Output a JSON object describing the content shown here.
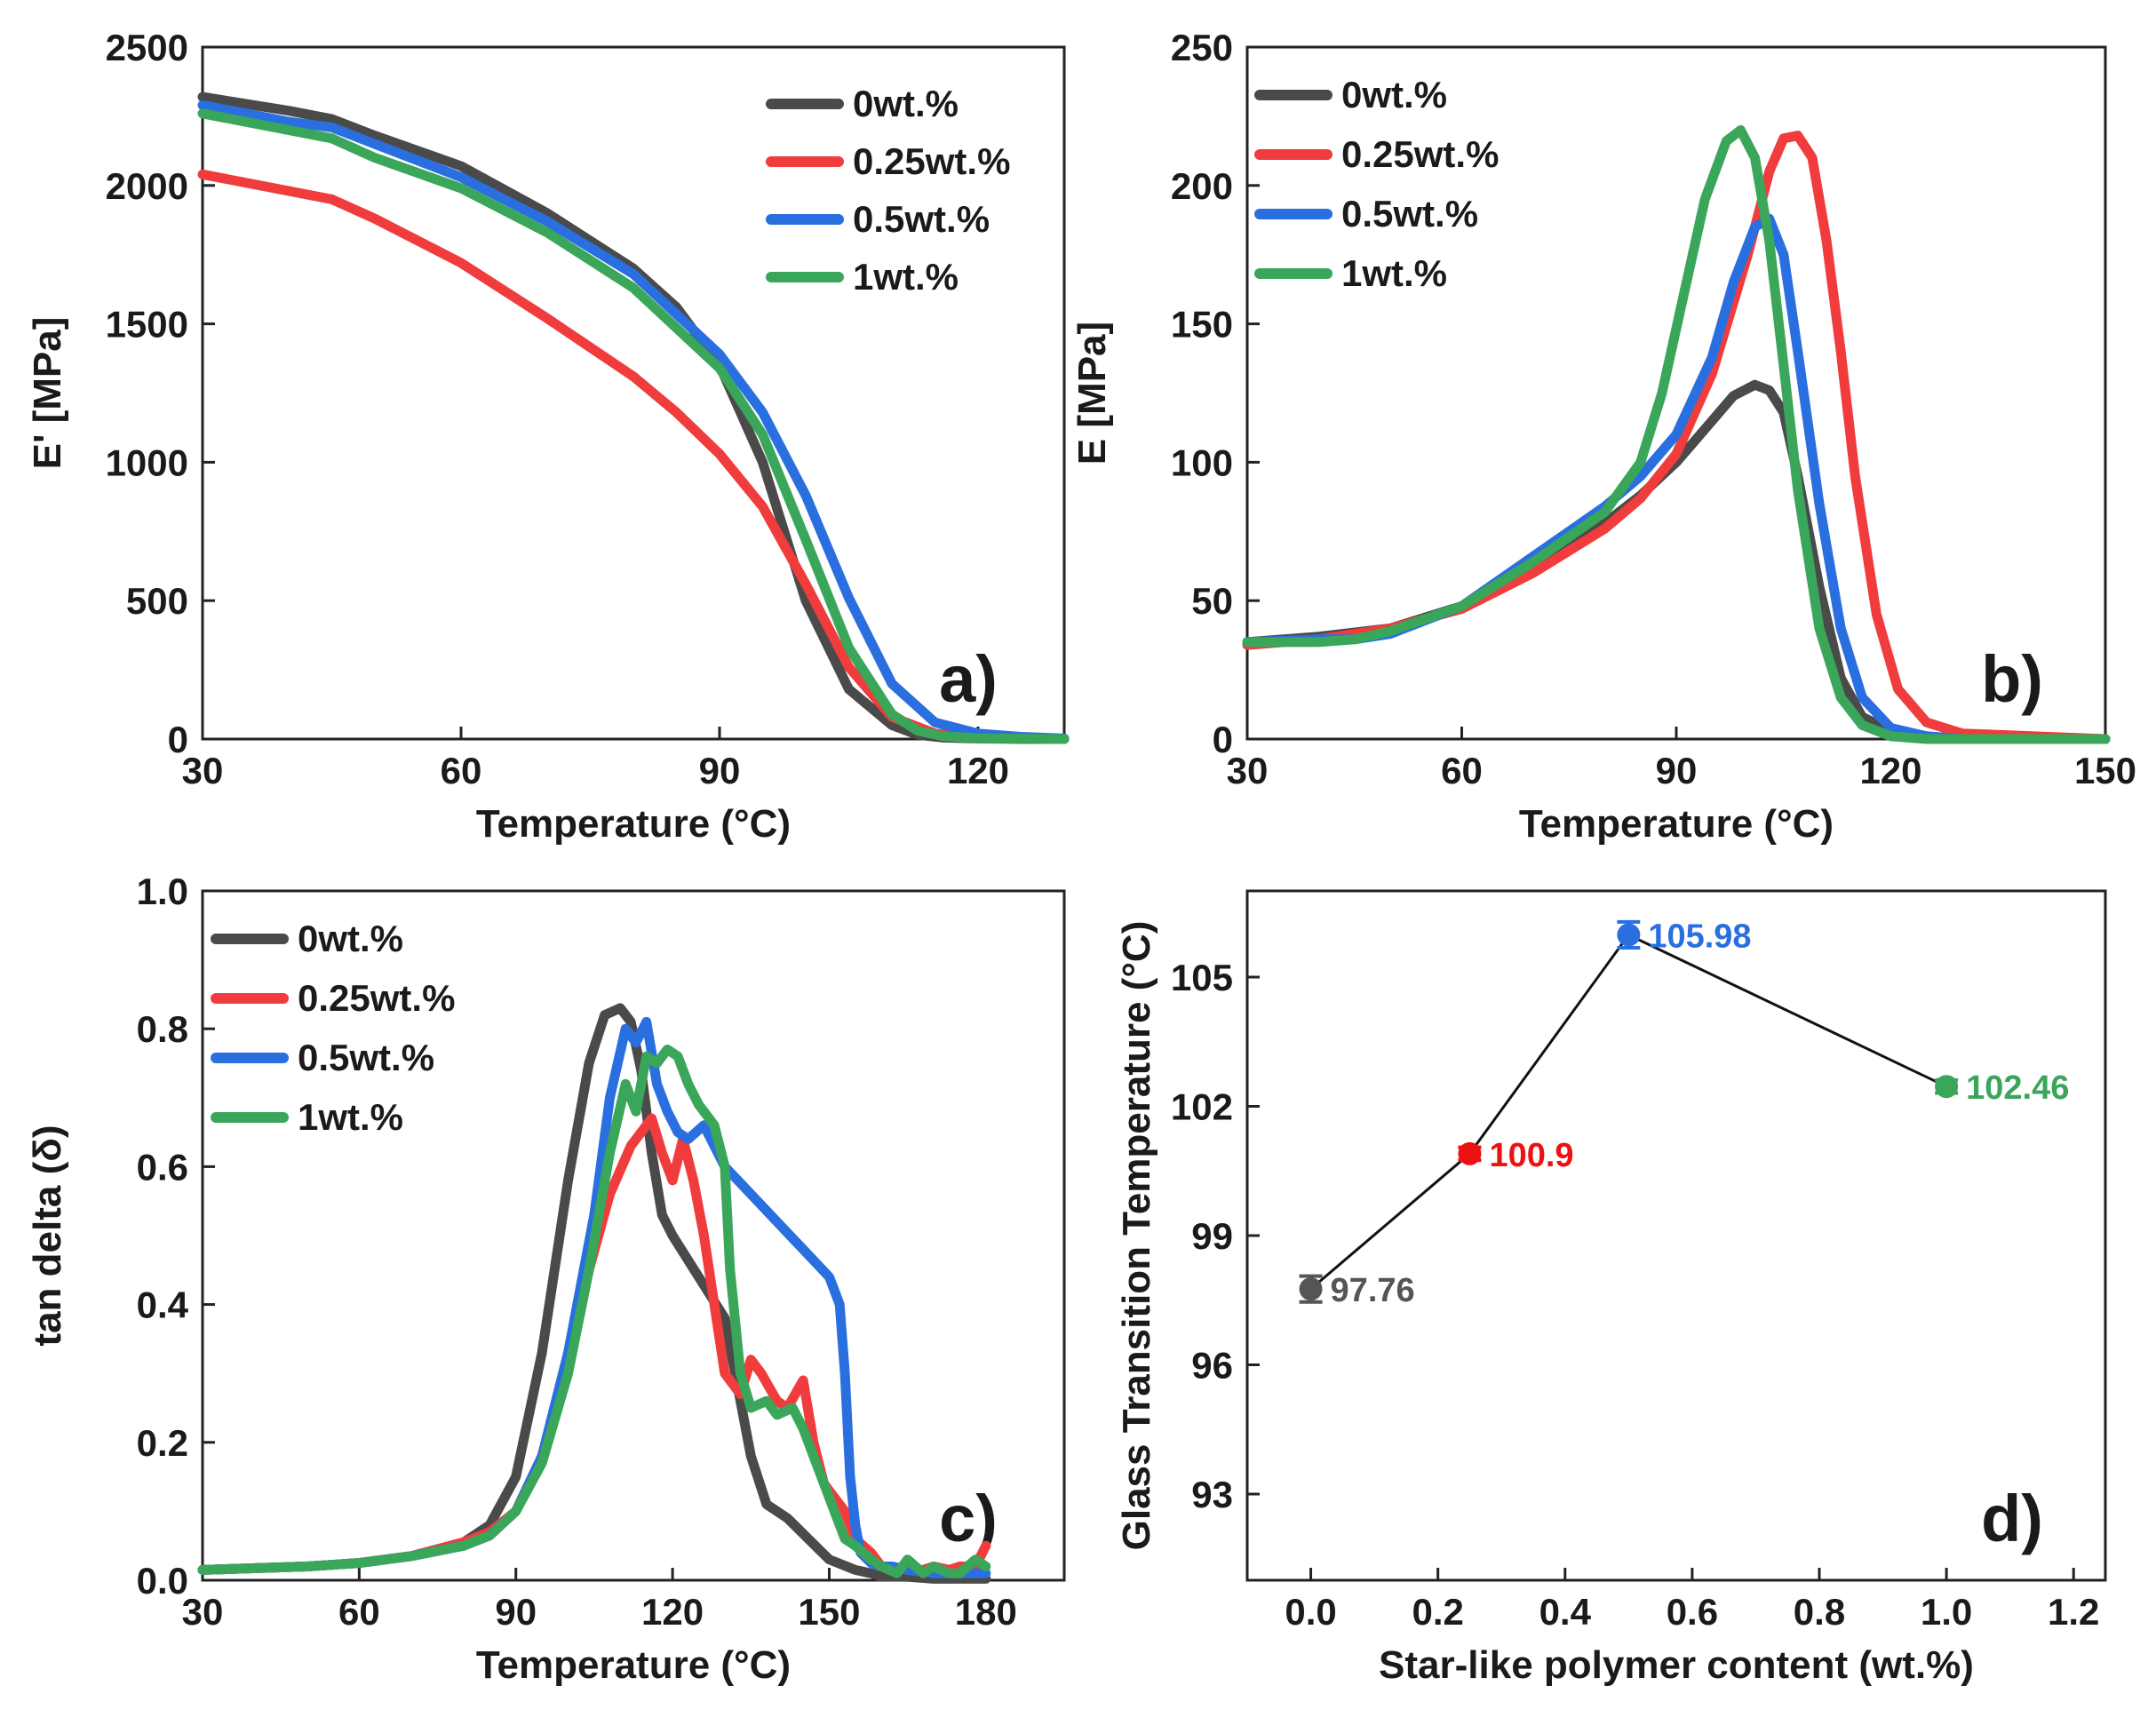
{
  "chart_data": [
    {
      "panel": "a)",
      "type": "line",
      "xlabel": "Temperature (°C)",
      "ylabel": "E' [MPa]",
      "xlim": [
        30,
        130
      ],
      "ylim": [
        0,
        2500
      ],
      "xticks": [
        30,
        60,
        90,
        120
      ],
      "yticks": [
        0,
        500,
        1000,
        1500,
        2000,
        2500
      ],
      "legend_position": "top-right",
      "series": [
        {
          "name": "0wt.%",
          "color": "#4a4a4a",
          "x": [
            30,
            40,
            45,
            50,
            60,
            70,
            80,
            85,
            90,
            95,
            100,
            105,
            110,
            113,
            116,
            120,
            125,
            130
          ],
          "y": [
            2320,
            2270,
            2240,
            2180,
            2070,
            1900,
            1700,
            1560,
            1350,
            1000,
            500,
            180,
            50,
            15,
            5,
            2,
            0,
            0
          ]
        },
        {
          "name": "0.25wt.%",
          "color": "#f03c3c",
          "x": [
            30,
            40,
            45,
            50,
            60,
            70,
            80,
            85,
            90,
            95,
            100,
            105,
            110,
            115,
            120,
            125,
            130
          ],
          "y": [
            2040,
            1980,
            1950,
            1880,
            1720,
            1520,
            1310,
            1180,
            1030,
            840,
            560,
            260,
            80,
            20,
            5,
            2,
            0
          ]
        },
        {
          "name": "0.5wt.%",
          "color": "#2a6fe0",
          "x": [
            30,
            40,
            45,
            50,
            60,
            70,
            80,
            90,
            95,
            100,
            105,
            110,
            115,
            120,
            125,
            130
          ],
          "y": [
            2290,
            2230,
            2210,
            2150,
            2030,
            1870,
            1680,
            1390,
            1180,
            880,
            510,
            200,
            60,
            20,
            8,
            2
          ]
        },
        {
          "name": "1wt.%",
          "color": "#3aa65a",
          "x": [
            30,
            40,
            45,
            50,
            60,
            70,
            80,
            90,
            95,
            100,
            105,
            110,
            113,
            116,
            120,
            125,
            130
          ],
          "y": [
            2260,
            2200,
            2170,
            2100,
            1990,
            1830,
            1630,
            1340,
            1100,
            720,
            330,
            90,
            30,
            10,
            3,
            1,
            0
          ]
        }
      ]
    },
    {
      "panel": "b)",
      "type": "line",
      "xlabel": "Temperature (°C)",
      "ylabel": "E [MPa]",
      "xlim": [
        30,
        150
      ],
      "ylim": [
        0,
        250
      ],
      "xticks": [
        30,
        60,
        90,
        120,
        150
      ],
      "yticks": [
        0,
        50,
        100,
        150,
        200,
        250
      ],
      "legend_position": "top-left",
      "series": [
        {
          "name": "0wt.%",
          "color": "#4a4a4a",
          "x": [
            30,
            40,
            50,
            60,
            70,
            80,
            85,
            90,
            95,
            98,
            101,
            103,
            105,
            107,
            110,
            113,
            116,
            120,
            125,
            130,
            150
          ],
          "y": [
            35,
            37,
            40,
            48,
            62,
            78,
            88,
            100,
            115,
            124,
            128,
            126,
            118,
            95,
            55,
            22,
            8,
            3,
            1,
            0,
            0
          ]
        },
        {
          "name": "0.25wt.%",
          "color": "#f03c3c",
          "x": [
            30,
            40,
            50,
            60,
            70,
            80,
            85,
            90,
            95,
            100,
            103,
            105,
            107,
            109,
            111,
            113,
            115,
            118,
            121,
            125,
            130,
            140,
            150
          ],
          "y": [
            34,
            36,
            40,
            47,
            60,
            76,
            87,
            103,
            132,
            175,
            205,
            217,
            218,
            210,
            180,
            140,
            95,
            45,
            18,
            6,
            2,
            1,
            0
          ]
        },
        {
          "name": "0.5wt.%",
          "color": "#2a6fe0",
          "x": [
            30,
            40,
            45,
            50,
            60,
            70,
            80,
            85,
            90,
            95,
            98,
            101,
            103,
            105,
            107,
            110,
            113,
            116,
            120,
            125,
            130,
            150
          ],
          "y": [
            35,
            36,
            36,
            38,
            48,
            66,
            84,
            95,
            110,
            138,
            165,
            185,
            188,
            175,
            140,
            85,
            40,
            15,
            4,
            1,
            0,
            0
          ]
        },
        {
          "name": "1wt.%",
          "color": "#3aa65a",
          "x": [
            30,
            40,
            45,
            50,
            60,
            70,
            80,
            85,
            88,
            91,
            94,
            97,
            99,
            101,
            103,
            105,
            107,
            110,
            113,
            116,
            120,
            125,
            130,
            150
          ],
          "y": [
            35,
            35,
            36,
            39,
            48,
            64,
            82,
            100,
            125,
            160,
            195,
            216,
            220,
            210,
            180,
            135,
            90,
            40,
            15,
            5,
            1,
            0,
            0,
            0
          ]
        }
      ]
    },
    {
      "panel": "c)",
      "type": "line",
      "xlabel": "Temperature (°C)",
      "ylabel": "tan delta (δ)",
      "xlim": [
        30,
        195
      ],
      "ylim": [
        0,
        1.0
      ],
      "xticks": [
        30,
        60,
        90,
        120,
        150,
        180
      ],
      "yticks": [
        0.0,
        0.2,
        0.4,
        0.6,
        0.8,
        1.0
      ],
      "legend_position": "top-left",
      "series": [
        {
          "name": "0wt.%",
          "color": "#4a4a4a",
          "x": [
            30,
            50,
            60,
            70,
            80,
            85,
            90,
            95,
            100,
            104,
            107,
            110,
            112,
            114,
            116,
            118,
            120,
            125,
            130,
            132,
            135,
            138,
            142,
            146,
            150,
            155,
            158,
            160,
            165,
            170,
            175,
            180
          ],
          "y": [
            0.015,
            0.02,
            0.025,
            0.035,
            0.055,
            0.08,
            0.15,
            0.33,
            0.58,
            0.75,
            0.82,
            0.83,
            0.81,
            0.74,
            0.62,
            0.53,
            0.5,
            0.44,
            0.38,
            0.3,
            0.18,
            0.11,
            0.09,
            0.06,
            0.03,
            0.015,
            0.01,
            0.005,
            0.005,
            0.002,
            0.002,
            0.002
          ]
        },
        {
          "name": "0.25wt.%",
          "color": "#f03c3c",
          "x": [
            30,
            50,
            60,
            70,
            80,
            85,
            90,
            95,
            100,
            104,
            108,
            112,
            116,
            118,
            120,
            122,
            124,
            126,
            128,
            130,
            133,
            135,
            137,
            140,
            142,
            145,
            147,
            149,
            151,
            153,
            155,
            158,
            160,
            162,
            165,
            168,
            170,
            173,
            175,
            178,
            180
          ],
          "y": [
            0.015,
            0.02,
            0.025,
            0.035,
            0.055,
            0.07,
            0.1,
            0.18,
            0.32,
            0.45,
            0.56,
            0.63,
            0.67,
            0.62,
            0.58,
            0.64,
            0.58,
            0.5,
            0.4,
            0.3,
            0.27,
            0.32,
            0.3,
            0.26,
            0.25,
            0.29,
            0.2,
            0.14,
            0.12,
            0.1,
            0.06,
            0.04,
            0.02,
            0.02,
            0.015,
            0.015,
            0.02,
            0.015,
            0.02,
            0.02,
            0.05
          ]
        },
        {
          "name": "0.5wt.%",
          "color": "#2a6fe0",
          "x": [
            30,
            50,
            60,
            70,
            80,
            85,
            90,
            95,
            100,
            105,
            108,
            111,
            113,
            115,
            117,
            119,
            121,
            123,
            126,
            128,
            130,
            135,
            140,
            145,
            150,
            152,
            153,
            154,
            155,
            156,
            158,
            160,
            162,
            165,
            170,
            175,
            180
          ],
          "y": [
            0.015,
            0.02,
            0.025,
            0.035,
            0.05,
            0.065,
            0.1,
            0.18,
            0.33,
            0.53,
            0.7,
            0.8,
            0.78,
            0.81,
            0.72,
            0.68,
            0.65,
            0.64,
            0.66,
            0.63,
            0.6,
            0.56,
            0.52,
            0.48,
            0.44,
            0.4,
            0.3,
            0.15,
            0.08,
            0.04,
            0.025,
            0.02,
            0.02,
            0.015,
            0.01,
            0.01,
            0.01
          ]
        },
        {
          "name": "1wt.%",
          "color": "#3aa65a",
          "x": [
            30,
            50,
            60,
            70,
            80,
            85,
            90,
            95,
            100,
            104,
            108,
            111,
            113,
            115,
            117,
            119,
            121,
            123,
            125,
            128,
            130,
            131,
            133,
            135,
            138,
            140,
            143,
            145,
            147,
            149,
            151,
            153,
            155,
            158,
            160,
            163,
            165,
            168,
            170,
            173,
            175,
            178,
            180
          ],
          "y": [
            0.015,
            0.02,
            0.025,
            0.035,
            0.05,
            0.065,
            0.1,
            0.17,
            0.3,
            0.45,
            0.62,
            0.72,
            0.68,
            0.76,
            0.75,
            0.77,
            0.76,
            0.72,
            0.69,
            0.66,
            0.6,
            0.45,
            0.3,
            0.25,
            0.26,
            0.24,
            0.25,
            0.22,
            0.18,
            0.14,
            0.1,
            0.06,
            0.05,
            0.03,
            0.02,
            0.01,
            0.03,
            0.01,
            0.02,
            0.01,
            0.01,
            0.03,
            0.02
          ]
        }
      ]
    },
    {
      "panel": "d)",
      "type": "scatter",
      "xlabel": "Star-like polymer content (wt.%)",
      "ylabel": "Glass Transition Temperature (°C)",
      "xlim": [
        -0.1,
        1.25
      ],
      "ylim": [
        91,
        107
      ],
      "xticks": [
        "0.0",
        "0.2",
        "0.4",
        "0.6",
        "0.8",
        "1.0",
        "1.2"
      ],
      "yticks": [
        93,
        96,
        99,
        102,
        105
      ],
      "points": [
        {
          "x": 0.0,
          "y": 97.76,
          "label": "97.76",
          "color": "#555555",
          "err": 0.3
        },
        {
          "x": 0.25,
          "y": 100.9,
          "label": "100.9",
          "color": "#ee1111",
          "err": 0.15
        },
        {
          "x": 0.5,
          "y": 105.98,
          "label": "105.98",
          "color": "#2a6fe0",
          "err": 0.3
        },
        {
          "x": 1.0,
          "y": 102.46,
          "label": "102.46",
          "color": "#3aa65a",
          "err": 0.15
        }
      ]
    }
  ]
}
